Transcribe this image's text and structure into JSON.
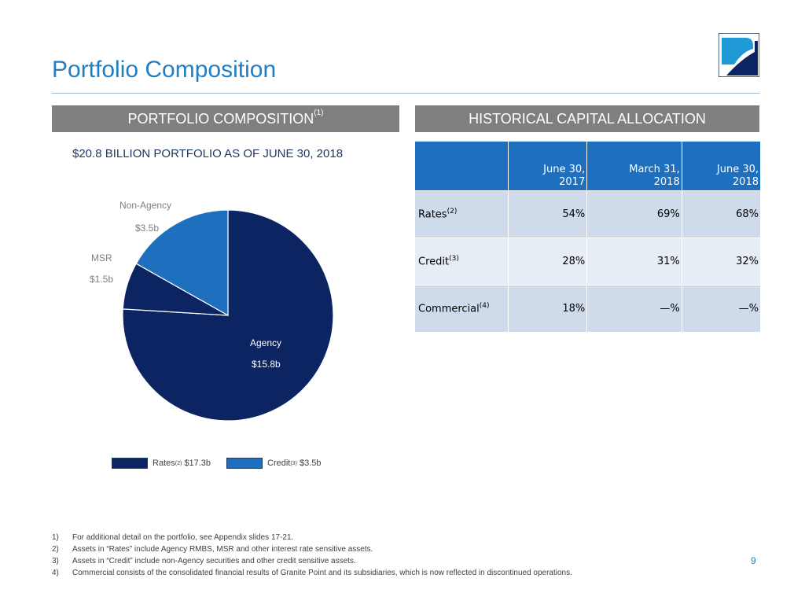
{
  "title": "Portfolio Composition",
  "left_header": {
    "text": "PORTFOLIO COMPOSITION",
    "sup": "(1)"
  },
  "right_header": {
    "text": "HISTORICAL CAPITAL ALLOCATION"
  },
  "subtitle": "$20.8 BILLION PORTFOLIO AS OF JUNE 30, 2018",
  "colors": {
    "agency": "#0c2461",
    "msr": "#0c2461",
    "non_agency": "#1f6fbf",
    "title": "#1f7fc4",
    "header_gray": "#7f7f7f"
  },
  "chart_data": {
    "type": "pie",
    "slices": [
      {
        "name": "Agency",
        "value": 15.8,
        "label": "$15.8b",
        "group": "Rates",
        "color": "#0c2461"
      },
      {
        "name": "MSR",
        "value": 1.5,
        "label": "$1.5b",
        "group": "Rates",
        "color": "#0c2461"
      },
      {
        "name": "Non-Agency",
        "value": 3.5,
        "label": "$3.5b",
        "group": "Credit",
        "color": "#1f6fbf"
      }
    ],
    "legend": [
      {
        "label": "Rates",
        "sup": "(2)",
        "value": "$17.3b",
        "color": "#0c2461"
      },
      {
        "label": "Credit",
        "sup": "(3)",
        "value": "$3.5b",
        "color": "#1f6fbf"
      }
    ],
    "legend_position": "bottom"
  },
  "table": {
    "columns": [
      {
        "line1": "June 30,",
        "line2": "2017"
      },
      {
        "line1": "March 31,",
        "line2": "2018"
      },
      {
        "line1": "June 30,",
        "line2": "2018"
      }
    ],
    "rows": [
      {
        "label": "Rates",
        "sup": "(2)",
        "values": [
          "54%",
          "69%",
          "68%"
        ]
      },
      {
        "label": "Credit",
        "sup": "(3)",
        "values": [
          "28%",
          "31%",
          "32%"
        ]
      },
      {
        "label": "Commercial",
        "sup": "(4)",
        "values": [
          "18%",
          "—%",
          "—%"
        ]
      }
    ]
  },
  "footnotes": [
    {
      "num": "1)",
      "text": "For additional detail on the portfolio, see Appendix slides 17-21."
    },
    {
      "num": "2)",
      "text": "Assets in “Rates” include Agency RMBS, MSR and other interest rate sensitive assets."
    },
    {
      "num": "3)",
      "text": "Assets in “Credit” include non-Agency securities and other credit sensitive assets."
    },
    {
      "num": "4)",
      "text": "Commercial consists of the consolidated financial results of Granite Point and its subsidiaries, which is now reflected in discontinued operations."
    }
  ],
  "page_number": "9"
}
